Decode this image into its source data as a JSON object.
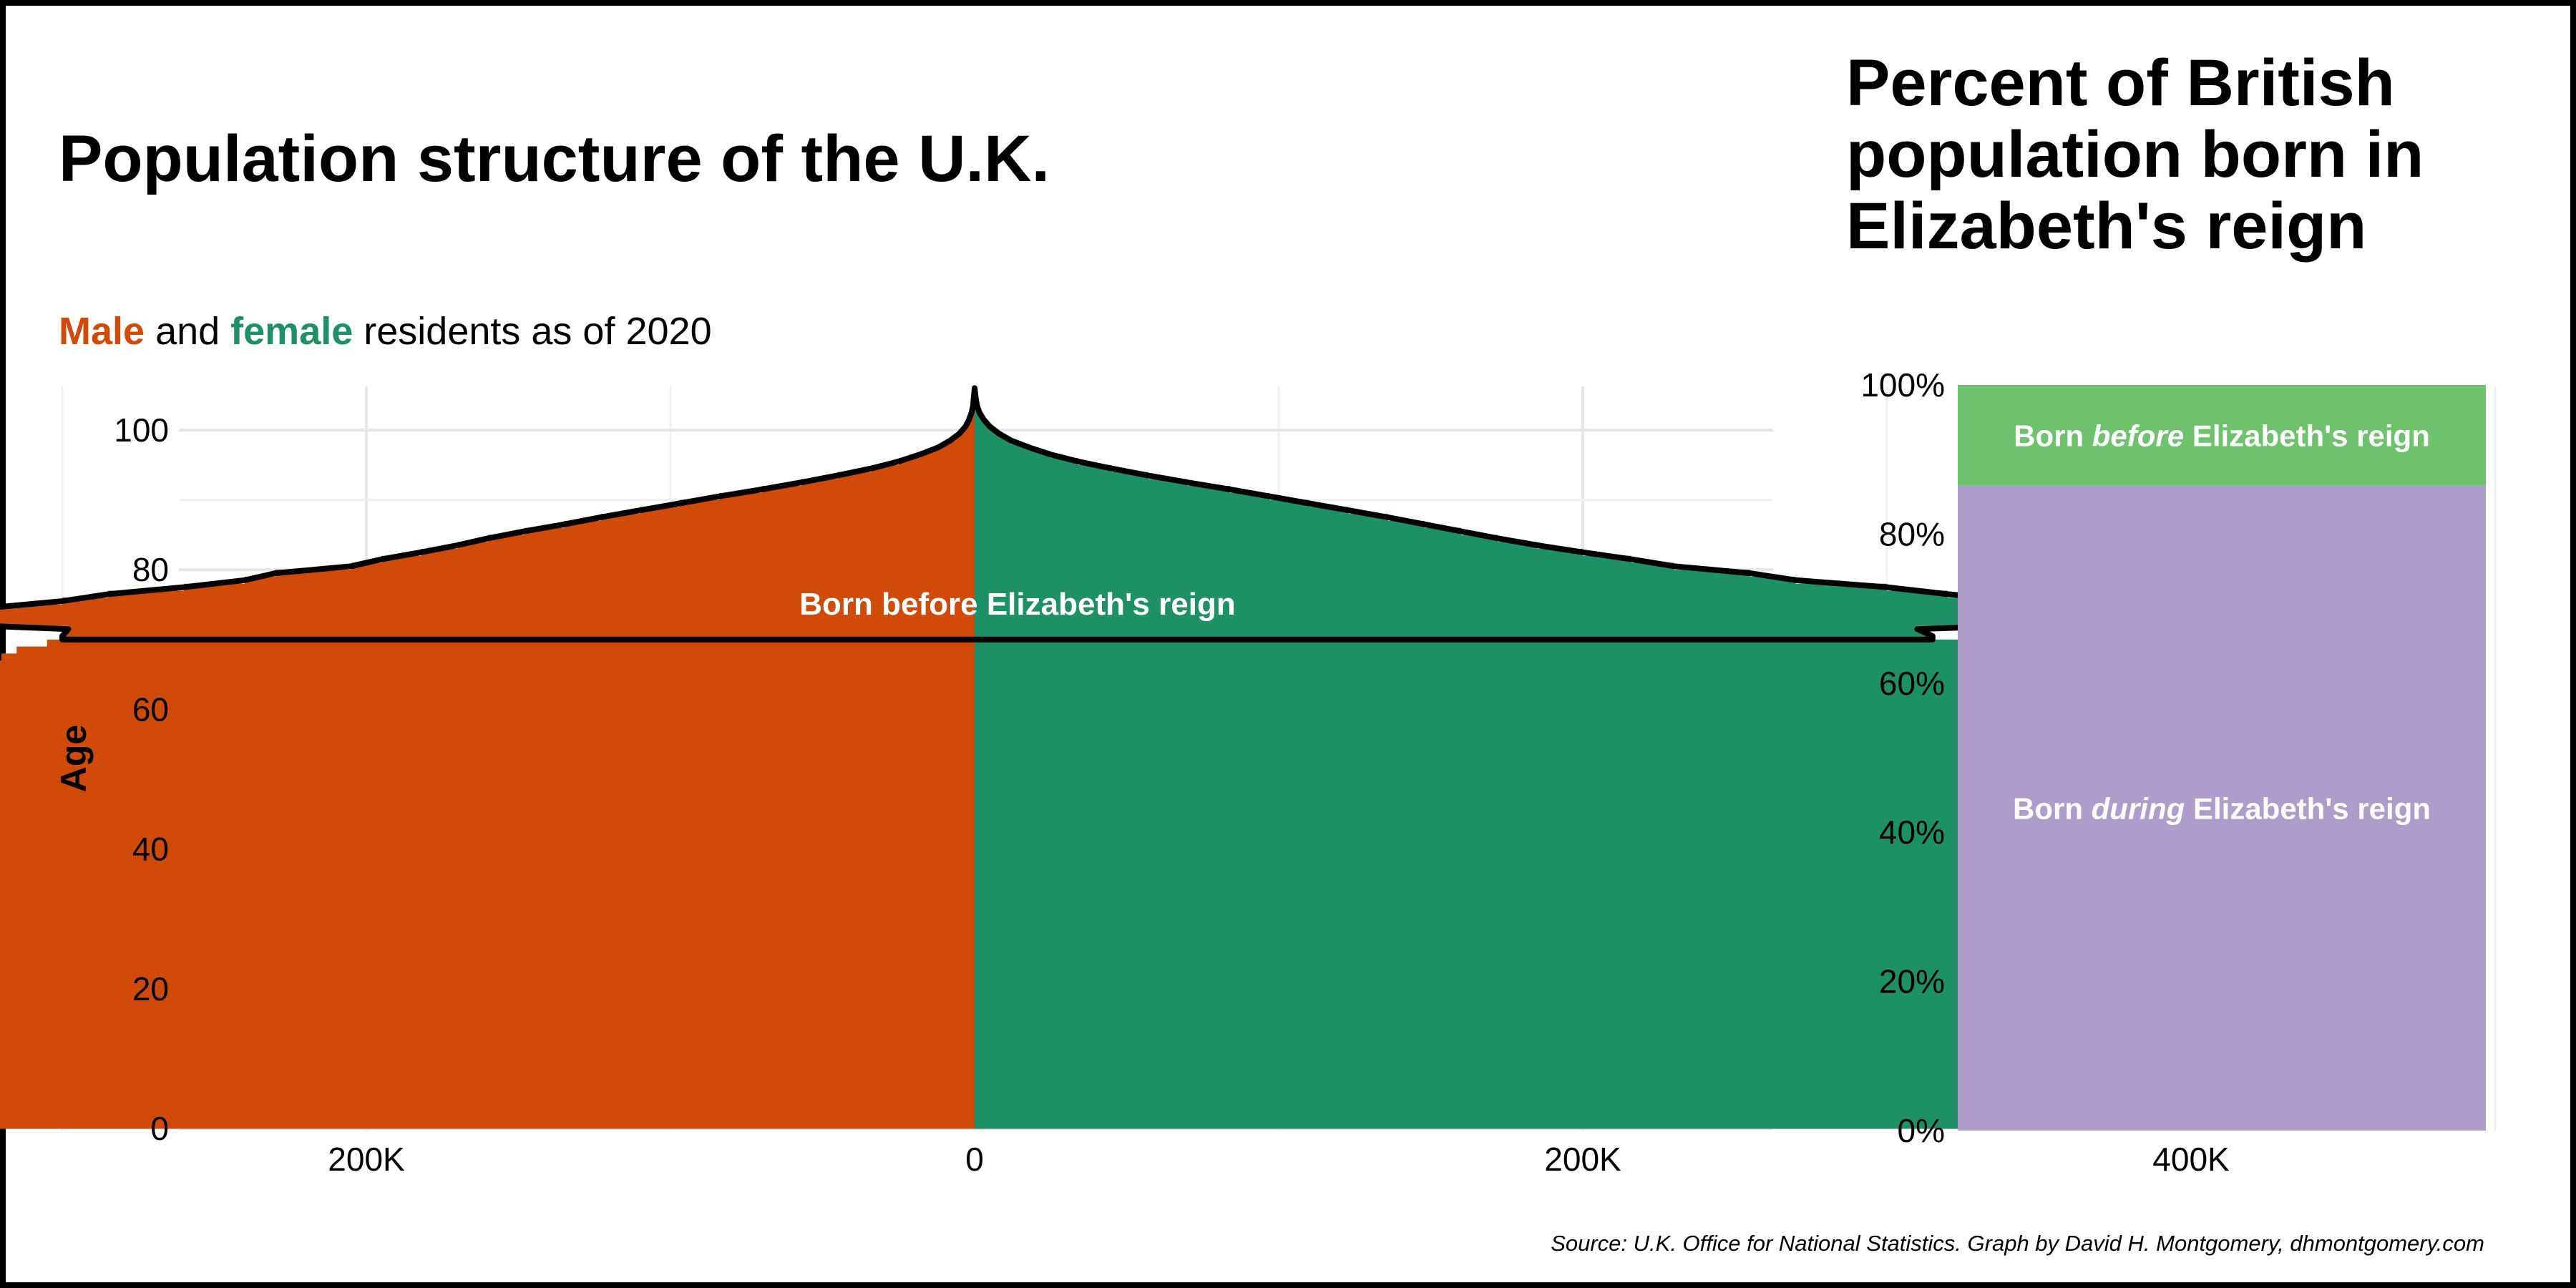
{
  "title": "Population structure of the U.K.",
  "subtitle": {
    "male_word": "Male",
    "and_word": " and ",
    "female_word": "female",
    "rest": " residents as of 2020"
  },
  "right_title_lines": [
    "Percent of British",
    "population born in",
    "Elizabeth's reign"
  ],
  "source": "Source: U.K. Office for National Statistics. Graph by David H. Montgomery, dhmontgomery.com",
  "colors": {
    "male": "#D04A0A",
    "female": "#1E9066",
    "before": "#6EC26C",
    "during": "#AE9DCB",
    "outline": "#000000",
    "grid": "#E6E6E6"
  },
  "chart_data": [
    {
      "type": "bar",
      "orientation": "horizontal-population-pyramid",
      "ylabel": "Age",
      "xlabel": "",
      "x_ticks": [
        "400K",
        "200K",
        "0",
        "200K",
        "400K"
      ],
      "x_tick_values": [
        -400000,
        -200000,
        0,
        200000,
        400000
      ],
      "xlim": [
        -500000,
        500000
      ],
      "y_ticks": [
        0,
        20,
        40,
        60,
        80,
        100
      ],
      "ylim": [
        0,
        106
      ],
      "annotation": "Born before Elizabeth's reign",
      "ages": [
        0,
        1,
        2,
        3,
        4,
        5,
        6,
        7,
        8,
        9,
        10,
        11,
        12,
        13,
        14,
        15,
        16,
        17,
        18,
        19,
        20,
        21,
        22,
        23,
        24,
        25,
        26,
        27,
        28,
        29,
        30,
        31,
        32,
        33,
        34,
        35,
        36,
        37,
        38,
        39,
        40,
        41,
        42,
        43,
        44,
        45,
        46,
        47,
        48,
        49,
        50,
        51,
        52,
        53,
        54,
        55,
        56,
        57,
        58,
        59,
        60,
        61,
        62,
        63,
        64,
        65,
        66,
        67,
        68,
        69,
        70,
        71,
        72,
        73,
        74,
        75,
        76,
        77,
        78,
        79,
        80,
        81,
        82,
        83,
        84,
        85,
        86,
        87,
        88,
        89,
        90,
        91,
        92,
        93,
        94,
        95,
        96,
        97,
        98,
        99,
        100,
        101,
        102,
        103,
        104,
        105
      ],
      "series": [
        {
          "name": "Male",
          "values": [
            360000,
            370000,
            385000,
            395000,
            400000,
            410000,
            420000,
            425000,
            432000,
            425000,
            422000,
            425000,
            418000,
            410000,
            418000,
            405000,
            395000,
            388000,
            375000,
            385000,
            400000,
            420000,
            425000,
            432000,
            440000,
            450000,
            455000,
            465000,
            475000,
            470000,
            460000,
            455000,
            450000,
            452000,
            448000,
            445000,
            442000,
            440000,
            438000,
            430000,
            420000,
            415000,
            420000,
            428000,
            440000,
            445000,
            452000,
            448000,
            450000,
            455000,
            460000,
            462000,
            465000,
            460000,
            455000,
            450000,
            445000,
            440000,
            430000,
            410000,
            390000,
            370000,
            355000,
            345000,
            340000,
            330000,
            325000,
            320000,
            315000,
            305000,
            300000,
            298000,
            355000,
            360000,
            325000,
            300000,
            285000,
            260000,
            240000,
            230000,
            205000,
            195000,
            182000,
            170000,
            160000,
            148000,
            135000,
            123000,
            110000,
            97000,
            84000,
            70000,
            57000,
            45000,
            34000,
            25000,
            18000,
            12000,
            8000,
            5000,
            3000,
            1800,
            1000,
            500,
            300,
            100
          ]
        },
        {
          "name": "Female",
          "values": [
            340000,
            350000,
            365000,
            375000,
            380000,
            390000,
            400000,
            405000,
            412000,
            405000,
            400000,
            405000,
            395000,
            390000,
            396000,
            385000,
            375000,
            368000,
            358000,
            368000,
            382000,
            400000,
            405000,
            412000,
            420000,
            430000,
            438000,
            446000,
            456000,
            450000,
            442000,
            440000,
            438000,
            442000,
            440000,
            437000,
            436000,
            435000,
            433000,
            422000,
            410000,
            404000,
            410000,
            418000,
            432000,
            440000,
            455000,
            462000,
            468000,
            474000,
            477000,
            478000,
            478000,
            474000,
            470000,
            462000,
            455000,
            445000,
            432000,
            410000,
            392000,
            376000,
            362000,
            352000,
            348000,
            345000,
            343000,
            340000,
            338000,
            332000,
            315000,
            310000,
            375000,
            395000,
            370000,
            345000,
            320000,
            300000,
            270000,
            255000,
            230000,
            216000,
            200000,
            185000,
            172000,
            160000,
            148000,
            136000,
            123000,
            110000,
            97000,
            84000,
            70000,
            57000,
            45000,
            34000,
            25000,
            18000,
            12000,
            8000,
            5000,
            3000,
            1600,
            800,
            400,
            150
          ]
        }
      ],
      "highlight_age_min": 70
    },
    {
      "type": "bar",
      "orientation": "stacked-vertical",
      "title": "Percent of British population born in Elizabeth's reign",
      "y_ticks": [
        "0%",
        "20%",
        "40%",
        "60%",
        "80%",
        "100%"
      ],
      "ylim": [
        0,
        100
      ],
      "segments": [
        {
          "label_pre": "Born ",
          "label_em": "during",
          "label_post": " Elizabeth's reign",
          "value": 86.5
        },
        {
          "label_pre": "Born ",
          "label_em": "before",
          "label_post": " Elizabeth's reign",
          "value": 13.5
        }
      ]
    }
  ]
}
